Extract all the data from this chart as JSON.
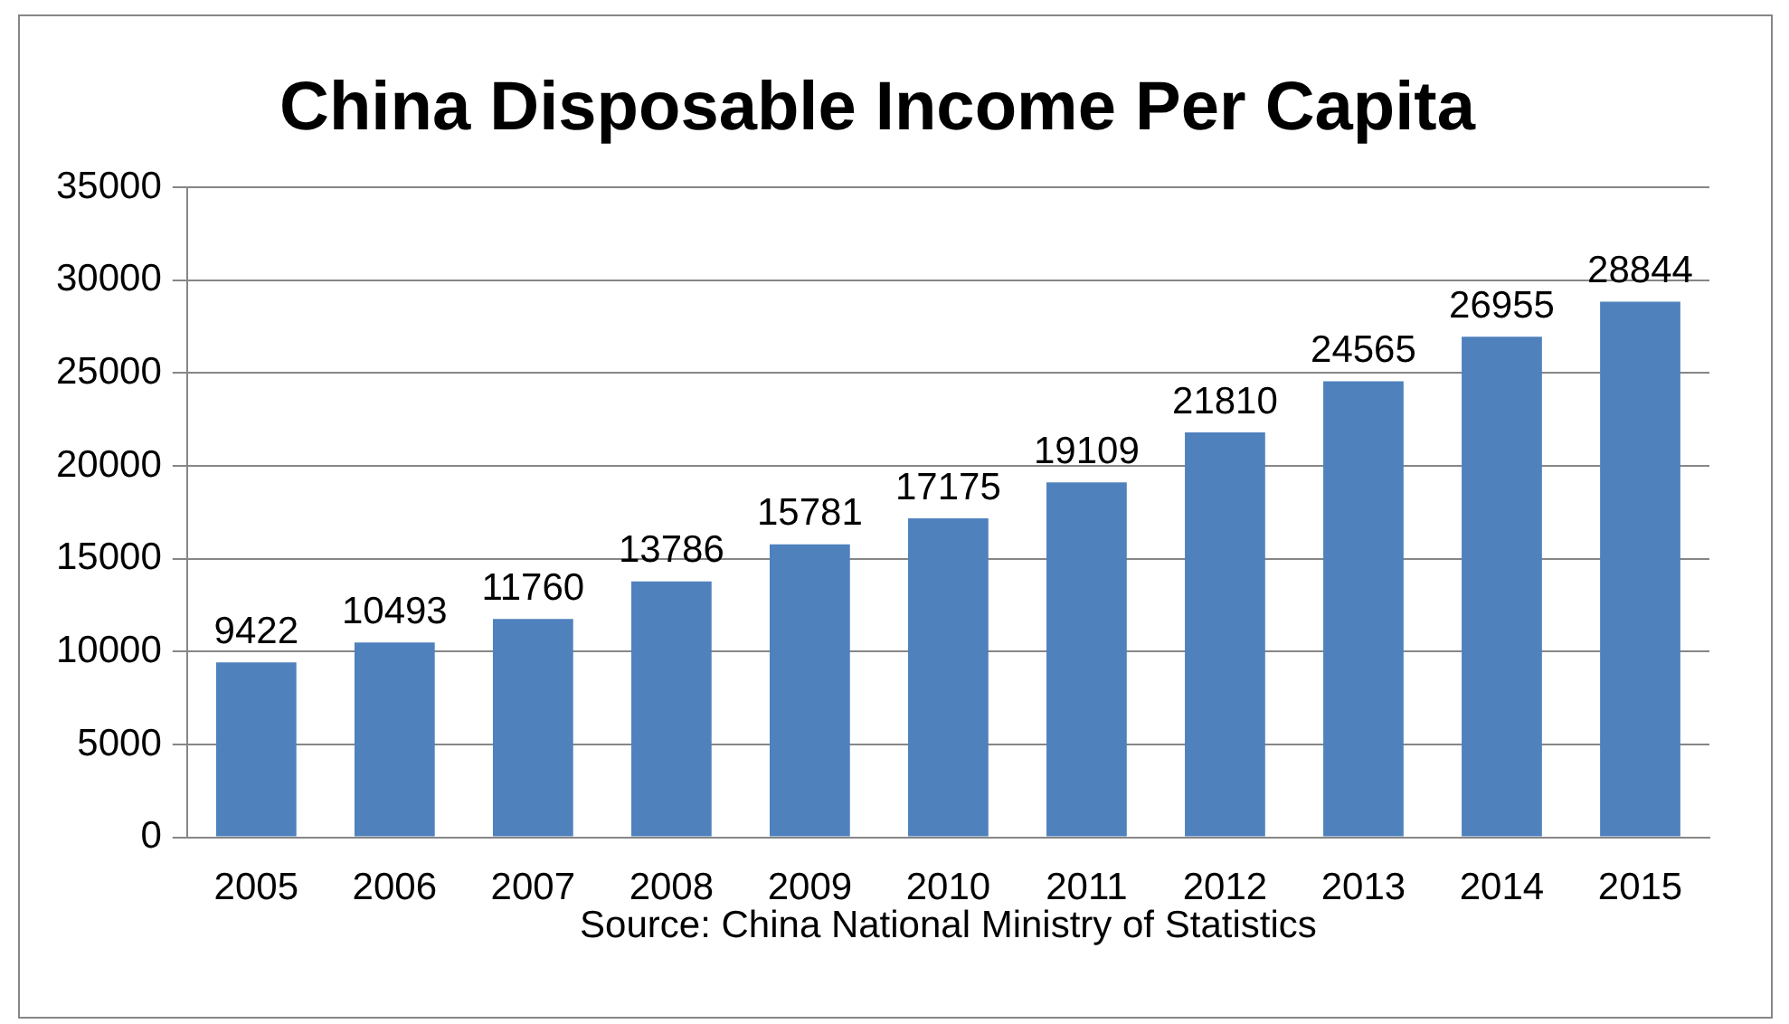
{
  "chart_data": {
    "type": "bar",
    "title": "China Disposable Income Per Capita",
    "categories": [
      "2005",
      "2006",
      "2007",
      "2008",
      "2009",
      "2010",
      "2011",
      "2012",
      "2013",
      "2014",
      "2015"
    ],
    "values": [
      9422,
      10493,
      11760,
      13786,
      15781,
      17175,
      19109,
      21810,
      24565,
      26955,
      28844
    ],
    "color": "#4f81bd",
    "ylim": [
      0,
      35000
    ],
    "yticks": [
      0,
      5000,
      10000,
      15000,
      20000,
      25000,
      30000,
      35000
    ],
    "grid": "y",
    "data_labels": true,
    "legend": false,
    "annotations": [
      "Source: China National Ministry of Statistics"
    ]
  }
}
